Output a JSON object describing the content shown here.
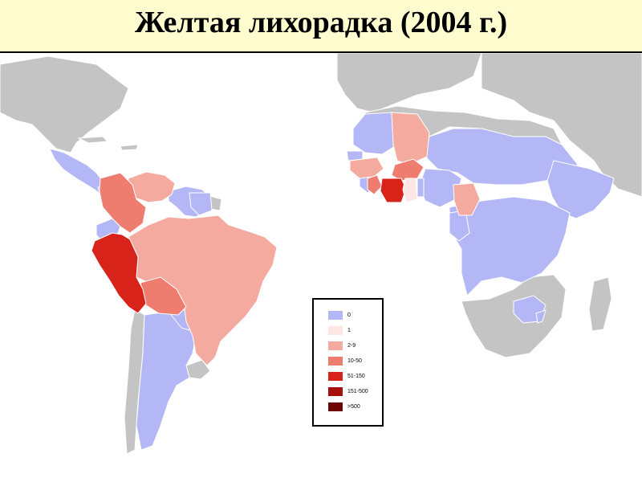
{
  "title": "Желтая лихорадка (2004 г.)",
  "colors": {
    "land_gray": "#c4c4c4",
    "border_white": "#ffffff",
    "cat_0": "#b3b7f5",
    "cat_1": "#fde6e3",
    "cat_2_9": "#f4aa9f",
    "cat_10_50": "#ee7c6f",
    "cat_51_150": "#d8231b",
    "cat_151_500": "#a50f0e",
    "cat_gt_500": "#6e0606"
  },
  "legend": [
    {
      "label": "0",
      "color": "#b3b7f5"
    },
    {
      "label": "1",
      "color": "#fde6e3"
    },
    {
      "label": "2-9",
      "color": "#f4aa9f"
    },
    {
      "label": "10-50",
      "color": "#ee7c6f"
    },
    {
      "label": "51-150",
      "color": "#d8231b"
    },
    {
      "label": "151-500",
      "color": "#a50f0e"
    },
    {
      "label": ">500",
      "color": "#6e0606"
    }
  ]
}
